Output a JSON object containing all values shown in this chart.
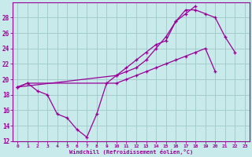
{
  "xlabel": "Windchill (Refroidissement éolien,°C)",
  "bg_color": "#c8eaea",
  "grid_color": "#a0c8c8",
  "line_color": "#990099",
  "xlim": [
    -0.5,
    23.5
  ],
  "ylim": [
    12,
    30
  ],
  "xticks": [
    0,
    1,
    2,
    3,
    4,
    5,
    6,
    7,
    8,
    9,
    10,
    11,
    12,
    13,
    14,
    15,
    16,
    17,
    18,
    19,
    20,
    21,
    22,
    23
  ],
  "yticks": [
    12,
    14,
    16,
    18,
    20,
    22,
    24,
    26,
    28
  ],
  "line1_x": [
    0,
    1,
    2,
    3,
    4,
    5,
    6,
    7,
    8,
    9,
    10,
    11,
    12,
    13,
    14,
    15,
    16,
    17,
    18,
    19,
    20,
    21,
    22
  ],
  "line1_y": [
    19.0,
    19.5,
    18.5,
    18.0,
    15.5,
    15.0,
    13.5,
    12.5,
    15.5,
    19.5,
    20.5,
    21.5,
    22.5,
    23.5,
    24.5,
    25.0,
    27.5,
    29.0,
    29.0,
    28.5,
    28.0,
    25.5,
    23.5
  ],
  "line2_x": [
    0,
    10,
    11,
    12,
    13,
    14,
    15,
    16,
    17,
    18
  ],
  "line2_y": [
    19.0,
    20.5,
    21.0,
    21.5,
    22.5,
    24.0,
    25.5,
    27.5,
    28.5,
    29.5
  ],
  "line3_x": [
    0,
    1,
    10,
    11,
    12,
    13,
    14,
    15,
    16,
    17,
    18,
    19,
    20
  ],
  "line3_y": [
    19.0,
    19.5,
    19.5,
    20.0,
    20.5,
    21.0,
    21.5,
    22.0,
    22.5,
    23.0,
    23.5,
    24.0,
    21.0
  ]
}
